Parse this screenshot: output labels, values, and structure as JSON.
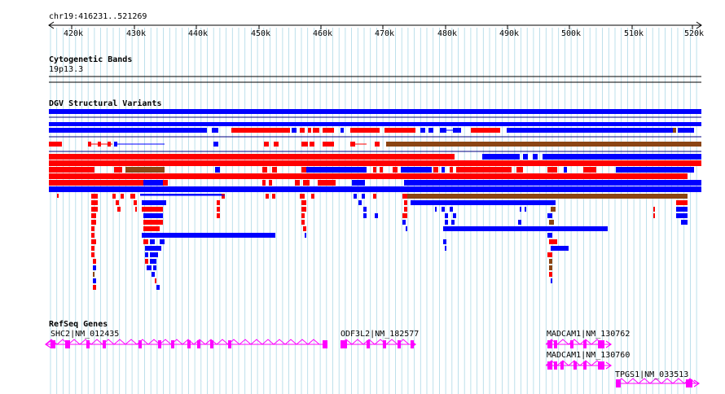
{
  "region": {
    "label": "chr19:416231..521269",
    "start": 416231,
    "end": 521269
  },
  "ruler": {
    "tick_labels": [
      "420k",
      "430k",
      "440k",
      "450k",
      "460k",
      "470k",
      "480k",
      "490k",
      "500k",
      "510k",
      "520k"
    ]
  },
  "tracks": {
    "cytoband": {
      "title": "Cytogenetic Bands",
      "band_label": "19p13.3"
    },
    "dgv": {
      "title": "DGV Structural Variants"
    },
    "refseq": {
      "title": "RefSeq Genes"
    }
  },
  "colors": {
    "loss": "#ff0000",
    "gain": "#0000ff",
    "inversion": "#8b4513",
    "gene": "#ff00ff",
    "grid": "#add8e6",
    "variant_rule": "#000080"
  },
  "genes": [
    {
      "label": "SHC2|NM_012435",
      "strand": "-",
      "exons": 13
    },
    {
      "label": "ODF3L2|NM_182577",
      "strand": "+",
      "exons": 6
    },
    {
      "label": "MADCAM1|NM_130762",
      "strand": "+",
      "exons": 5
    },
    {
      "label": "MADCAM1|NM_130760",
      "strand": "+",
      "exons": 5
    },
    {
      "label": "TPGS1|NM_033513",
      "strand": "+",
      "exons": 2
    }
  ]
}
